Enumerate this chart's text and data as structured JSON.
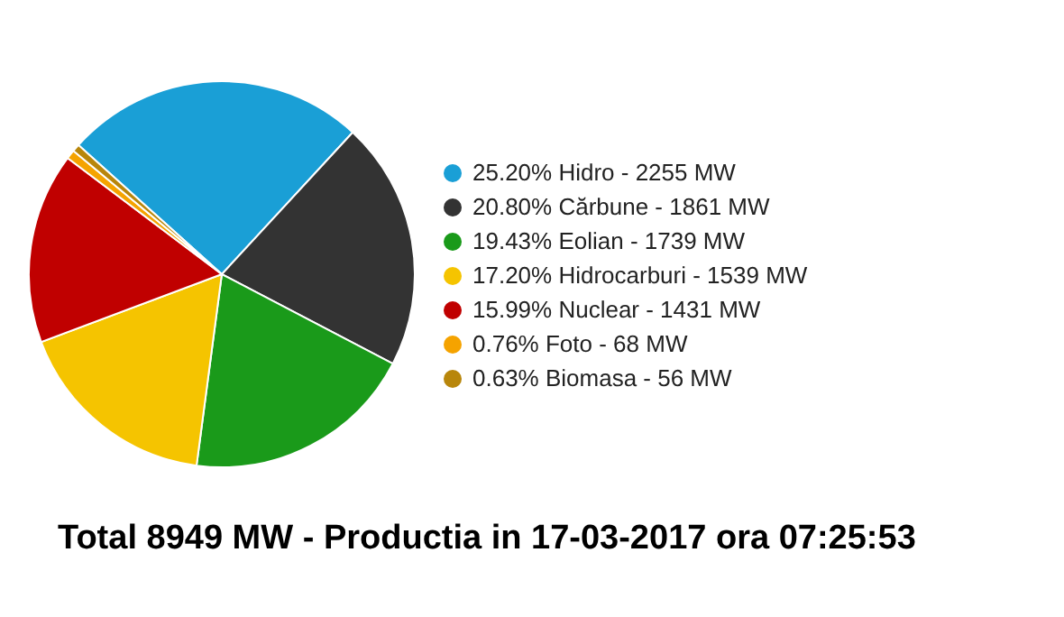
{
  "chart_data": {
    "type": "pie",
    "title": "Total 8949 MW - Productia in 17-03-2017 ora 07:25:53",
    "categories": [
      "25.20% Hidro - 2255 MW",
      "20.80% Cărbune - 1861 MW",
      "19.43% Eolian - 1739 MW",
      "17.20% Hidrocarburi - 1539 MW",
      "15.99% Nuclear - 1431 MW",
      "0.76% Foto - 68 MW",
      "0.63% Biomasa - 56 MW"
    ],
    "values": [
      25.2,
      20.8,
      19.43,
      17.2,
      15.99,
      0.76,
      0.63
    ],
    "colors": [
      "#1a9fd6",
      "#333333",
      "#1a9a1a",
      "#f5c400",
      "#c00000",
      "#f5a300",
      "#b8860b"
    ],
    "legend": "right"
  }
}
